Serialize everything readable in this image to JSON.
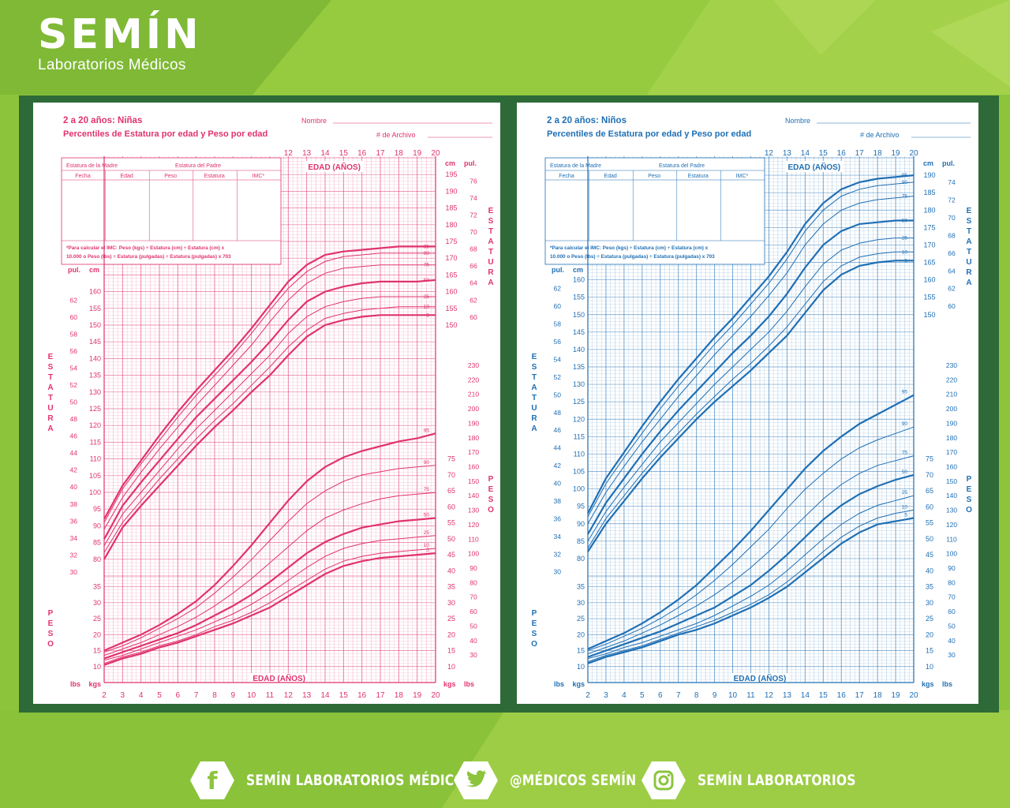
{
  "brand": {
    "name": "SEMÍN",
    "subtitle": "Laboratorios Médicos"
  },
  "colors": {
    "green_bg": "#8cc43c",
    "frame": "#2d6a37",
    "girls_ink": "#e0336e",
    "boys_ink": "#1f6fb4"
  },
  "footer": {
    "facebook": {
      "icon": "facebook-icon",
      "label": "SEMÍN LABORATORIOS MÉDICOS"
    },
    "twitter": {
      "icon": "twitter-icon",
      "label": "@MÉDICOS SEMÍN"
    },
    "instagram": {
      "icon": "instagram-icon",
      "label": "SEMÍN LABORATORIOS"
    }
  },
  "chart_data": [
    {
      "type": "line",
      "title": "2 a 20 años: Niñas",
      "subtitle": "Percentiles de Estatura por edad y Peso por edad",
      "nombre": "Nombre",
      "archivo": "# de Archivo",
      "table_header": [
        "Estatura de la Madre",
        "Estatura del Padre"
      ],
      "table_cols": [
        "Fecha",
        "Edad",
        "Peso",
        "Estatura",
        "IMC*"
      ],
      "note_1": "*Para calcular el IMC: Peso (kgs) ÷ Estatura (cm) ÷ Estatura (cm) x",
      "note_2": "10.000 o Peso (lbs) ÷ Estatura (pulgadas) ÷ Estatura (pulgadas) x 703",
      "xlabel": "EDAD (AÑOS)",
      "stature_label": "ESTATURA",
      "weight_label": "PESO",
      "unit_cm": "cm",
      "unit_in": "pul.",
      "unit_kg": "kgs",
      "unit_lb": "lbs",
      "xlim": [
        2,
        20
      ],
      "x_ticks": [
        2,
        3,
        4,
        5,
        6,
        7,
        8,
        9,
        10,
        11,
        12,
        13,
        14,
        15,
        16,
        17,
        18,
        19,
        20
      ],
      "stature_ylim_cm": [
        75,
        200
      ],
      "weight_ylim_kg": [
        5,
        110
      ],
      "x": [
        2,
        3,
        4,
        5,
        6,
        7,
        8,
        9,
        10,
        11,
        12,
        13,
        14,
        15,
        16,
        17,
        18,
        19,
        20
      ],
      "stature_series": [
        {
          "name": "95",
          "values": [
            92,
            102,
            109.5,
            117,
            124,
            130.5,
            136.5,
            142.5,
            149,
            156,
            163,
            168,
            171,
            172,
            172.5,
            173,
            173.5,
            173.5,
            173.5
          ]
        },
        {
          "name": "90",
          "values": [
            91,
            101,
            108.5,
            115.5,
            122.5,
            129,
            135,
            141,
            147.5,
            154.5,
            161,
            166,
            169,
            170.5,
            171,
            171.5,
            171.5,
            171.5,
            171.5
          ]
        },
        {
          "name": "75",
          "values": [
            89,
            98.5,
            106,
            113,
            119.5,
            126,
            132,
            138,
            144,
            151,
            157.5,
            162.5,
            165.5,
            167,
            167.5,
            168,
            168,
            168,
            168
          ]
        },
        {
          "name": "50",
          "values": [
            86,
            96,
            103,
            109.5,
            116,
            122.5,
            128,
            133.5,
            139,
            145,
            151.5,
            157,
            160,
            161.5,
            162.5,
            163,
            163,
            163,
            163.5
          ]
        },
        {
          "name": "25",
          "values": [
            84,
            93.5,
            100,
            106.5,
            113,
            119,
            124.5,
            130,
            135.5,
            141,
            147.5,
            152.5,
            155.5,
            157,
            158,
            158.5,
            158.5,
            158.5,
            158.5
          ]
        },
        {
          "name": "10",
          "values": [
            82,
            91,
            97.5,
            104,
            110,
            116,
            121.5,
            126.5,
            132,
            137.5,
            143.5,
            148.5,
            152,
            153.5,
            154.5,
            155,
            155.5,
            155.5,
            155.5
          ]
        },
        {
          "name": "5",
          "values": [
            80,
            89.5,
            96,
            102,
            108,
            114,
            119.5,
            124.5,
            130,
            135,
            141,
            146.5,
            150,
            151.5,
            152.5,
            153,
            153,
            153,
            153
          ]
        }
      ],
      "weight_series": [
        {
          "name": "95",
          "values": [
            15,
            17.5,
            20,
            23,
            26.5,
            30.5,
            35.5,
            41.5,
            48,
            55,
            62,
            68,
            72.5,
            75.5,
            77.5,
            79,
            80.5,
            81.5,
            83
          ]
        },
        {
          "name": "90",
          "values": [
            14.5,
            16.5,
            19,
            22,
            25,
            28.5,
            33,
            38,
            43.5,
            49.5,
            55.5,
            61,
            65,
            68,
            70,
            71,
            72,
            72.5,
            73
          ]
        },
        {
          "name": "75",
          "values": [
            13.5,
            15.5,
            17.5,
            20,
            22.5,
            25.5,
            29,
            33,
            37.5,
            42.5,
            47.5,
            52.5,
            56.5,
            59,
            61,
            62.5,
            63.5,
            64,
            64.5
          ]
        },
        {
          "name": "50",
          "values": [
            12.5,
            14.5,
            16.5,
            18.5,
            20.5,
            23,
            26,
            29,
            32.5,
            36.5,
            41,
            45.5,
            49,
            51.5,
            53.5,
            54.5,
            55.5,
            56,
            56.5
          ]
        },
        {
          "name": "25",
          "values": [
            12,
            13.5,
            15.5,
            17.5,
            19.5,
            21.5,
            24,
            26.5,
            29.5,
            33,
            37,
            41,
            44.5,
            47,
            48.5,
            49.5,
            50,
            50.5,
            51
          ]
        },
        {
          "name": "10",
          "values": [
            11,
            13,
            14.5,
            16.5,
            18,
            20,
            22.5,
            24.5,
            27,
            30,
            33.5,
            37,
            40.5,
            43,
            44.5,
            45.5,
            46,
            46.5,
            47
          ]
        },
        {
          "name": "5",
          "values": [
            10.5,
            12.5,
            14,
            16,
            17.5,
            19.5,
            21.5,
            23.5,
            26,
            28.5,
            32,
            35.5,
            39,
            41.5,
            43,
            44,
            44.5,
            45,
            45.5
          ]
        }
      ]
    },
    {
      "type": "line",
      "title": "2 a 20 años: Niños",
      "subtitle": "Percentiles de Estatura por edad y Peso por edad",
      "nombre": "Nombre",
      "archivo": "# de Archivo",
      "table_header": [
        "Estatura de la Madre",
        "Estatura del Padre"
      ],
      "table_cols": [
        "Fecha",
        "Edad",
        "Peso",
        "Estatura",
        "IMC*"
      ],
      "note_1": "*Para calcular el IMC: Peso (kgs) ÷ Estatura (cm) ÷ Estatura (cm) x",
      "note_2": "10.000 o Peso (lbs) ÷ Estatura (pulgadas) ÷ Estatura (pulgadas) x 703",
      "xlabel": "EDAD (AÑOS)",
      "stature_label": "ESTATURA",
      "weight_label": "PESO",
      "unit_cm": "cm",
      "unit_in": "pul.",
      "unit_kg": "kgs",
      "unit_lb": "lbs",
      "xlim": [
        2,
        20
      ],
      "x_ticks": [
        2,
        3,
        4,
        5,
        6,
        7,
        8,
        9,
        10,
        11,
        12,
        13,
        14,
        15,
        16,
        17,
        18,
        19,
        20
      ],
      "stature_ylim_cm": [
        75,
        195
      ],
      "weight_ylim_kg": [
        5,
        110
      ],
      "x": [
        2,
        3,
        4,
        5,
        6,
        7,
        8,
        9,
        10,
        11,
        12,
        13,
        14,
        15,
        16,
        17,
        18,
        19,
        20
      ],
      "stature_series": [
        {
          "name": "95",
          "values": [
            93,
            103,
            110.5,
            118,
            125,
            131.5,
            137.5,
            143.5,
            149,
            155,
            161,
            168,
            176,
            182,
            186,
            188,
            189,
            189.5,
            190
          ]
        },
        {
          "name": "90",
          "values": [
            92,
            101.5,
            109,
            116,
            123,
            129.5,
            135.5,
            141.5,
            147,
            153,
            159,
            166,
            174,
            180,
            184,
            186,
            187,
            187.5,
            188
          ]
        },
        {
          "name": "75",
          "values": [
            90,
            99,
            106.5,
            113.5,
            120,
            126.5,
            132.5,
            138.5,
            144,
            149.5,
            155.5,
            162,
            170,
            176,
            180,
            182,
            183,
            183.5,
            184
          ]
        },
        {
          "name": "50",
          "values": [
            87,
            96,
            103,
            110,
            116.5,
            122.5,
            128,
            133.5,
            139,
            144,
            149.5,
            156,
            163.5,
            170,
            174,
            176,
            176.5,
            177,
            177
          ]
        },
        {
          "name": "25",
          "values": [
            85,
            93.5,
            100.5,
            107,
            113.5,
            119,
            124.5,
            130,
            135,
            140,
            145,
            151,
            158,
            164.5,
            168.5,
            170.5,
            171.5,
            172,
            172
          ]
        },
        {
          "name": "10",
          "values": [
            83,
            91.5,
            98,
            104.5,
            110.5,
            116,
            121.5,
            126.5,
            131.5,
            136,
            141,
            146.5,
            153,
            159.5,
            164,
            166.5,
            167.5,
            168,
            168
          ]
        },
        {
          "name": "5",
          "values": [
            82,
            90,
            96.5,
            103,
            109,
            114.5,
            120,
            125,
            129.5,
            134,
            139,
            144,
            150.5,
            157,
            161.5,
            164,
            165,
            165.5,
            165.5
          ]
        }
      ],
      "weight_series": [
        {
          "name": "95",
          "values": [
            15.5,
            18,
            20.5,
            23.5,
            27,
            31,
            35.5,
            41,
            46.5,
            52.5,
            59,
            65.5,
            72,
            77.5,
            82,
            86,
            89,
            92,
            95
          ]
        },
        {
          "name": "90",
          "values": [
            15,
            17,
            19.5,
            22,
            25,
            28.5,
            32.5,
            37,
            42,
            47.5,
            53,
            59.5,
            65.5,
            70.5,
            75,
            78.5,
            81,
            83,
            85
          ]
        },
        {
          "name": "75",
          "values": [
            14,
            16,
            18,
            20.5,
            23,
            26,
            29,
            32.5,
            36.5,
            41,
            46,
            51.5,
            57,
            62.5,
            67,
            70.5,
            73,
            74.5,
            76
          ]
        },
        {
          "name": "50",
          "values": [
            13,
            15,
            17,
            19,
            21,
            23.5,
            26,
            28.5,
            32,
            35.5,
            40,
            45,
            50.5,
            56,
            60.5,
            64,
            66.5,
            68.5,
            70
          ]
        },
        {
          "name": "25",
          "values": [
            12.5,
            14,
            16,
            17.5,
            19.5,
            21.5,
            23.5,
            26,
            29,
            32,
            35.5,
            40,
            45,
            50,
            54.5,
            58,
            60.5,
            62,
            63.5
          ]
        },
        {
          "name": "10",
          "values": [
            11.5,
            13.5,
            15,
            16.5,
            18.5,
            20.5,
            22.5,
            24.5,
            27,
            29.5,
            32.5,
            36.5,
            41,
            46,
            50.5,
            54,
            56.5,
            58,
            59
          ]
        },
        {
          "name": "5",
          "values": [
            11,
            13,
            14.5,
            16,
            18,
            20,
            21.5,
            23.5,
            26,
            28.5,
            31.5,
            35,
            39.5,
            44,
            48.5,
            52,
            54.5,
            55.5,
            56.5
          ]
        }
      ]
    }
  ]
}
